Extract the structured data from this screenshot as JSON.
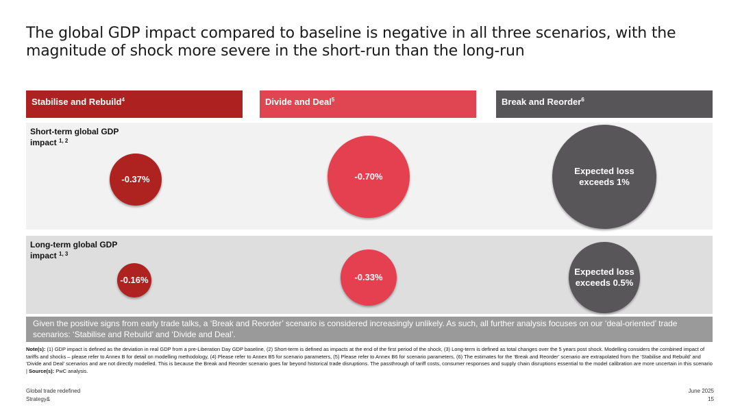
{
  "title": "The global GDP impact compared to baseline is negative in all three scenarios, with the magnitude of shock more severe in the short-run than the long-run",
  "colors": {
    "stabilise": "#ad2121",
    "divide": "#e04552",
    "break": "#585558"
  },
  "chart_data": {
    "type": "bubble",
    "categories": [
      {
        "label": "Stabilise and Rebuild",
        "sup": "4"
      },
      {
        "label": "Divide and Deal",
        "sup": "5"
      },
      {
        "label": "Break and Reorder",
        "sup": "6"
      }
    ],
    "rows": [
      {
        "label": "Short-term global GDP impact",
        "sup": "1, 2",
        "values": [
          -0.37,
          -0.7,
          -1.0
        ],
        "labels": [
          "-0.37%",
          "-0.70%",
          "Expected loss exceeds 1%"
        ]
      },
      {
        "label": "Long-term global GDP impact",
        "sup": "1, 3",
        "values": [
          -0.16,
          -0.33,
          -0.5
        ],
        "labels": [
          "-0.16%",
          "-0.33%",
          "Expected loss exceeds 0.5%"
        ]
      }
    ]
  },
  "summary": "Given the positive signs from early trade talks, a ‘Break and Reorder’ scenario is considered increasingly unlikely. As such, all further analysis focuses on our ‘deal-oriented’ trade scenarios: ‘Stabilise and Rebuild’ and ‘Divide and Deal’.",
  "notes": {
    "label": "Note(s):",
    "text": "(1) GDP impact is defined as the deviation in real GDP from a pre-Liberation Day GDP baseline, (2) Short-term is defined as impacts at the end of the first period of the shock, (3) Long-term is defined as total changes over the 5 years post shock. Modelling considers the combined impact of tariffs and shocks – please refer to Annex B for detail on modelling methodology, (4) Please refer to Annex B5 for scenario parameters, (5) Please refer to Annex B6 for scenario parameters, (6) The estimates for the ‘Break and Reorder’ scenario are extrapolated from the ‘Stabilise and Rebuild’ and ‘Divide and Deal’ scenarios and are not directly modelled. This is because the Break and Reorder scenario goes far beyond historical trade disruptions. The passthrough of tariff costs, consumer responses and supply chain disruptions essential to the model calibration are more uncertain in this scenario |",
    "source_label": "Source(s):",
    "source": "PwC analysis."
  },
  "footer": {
    "left1": "Global trade redefined",
    "left2": "Strategy&",
    "date": "June 2025",
    "page": "15"
  }
}
